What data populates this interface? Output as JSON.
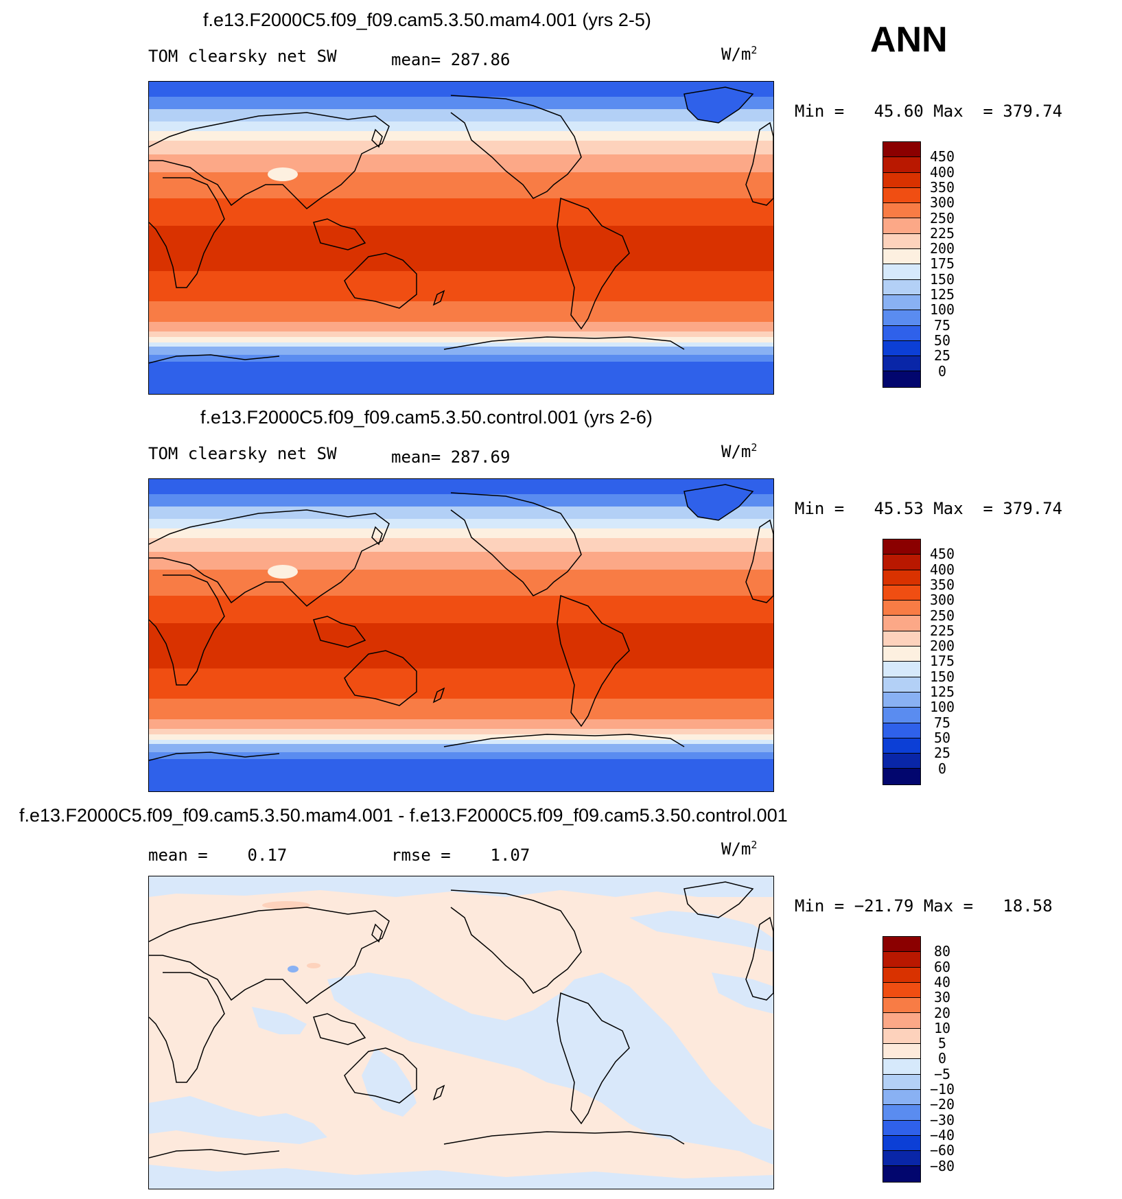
{
  "season": "ANN",
  "units_base": "W/m",
  "units_exp": "2",
  "panels": [
    {
      "title": "f.e13.F2000C5.f09_f09.cam5.3.50.mam4.001 (yrs 2-5)",
      "left_label": "TOM clearsky net SW",
      "mean_label": "mean= 287.86",
      "minmax_label": "Min =   45.60 Max  = 379.74",
      "colorbar": {
        "levels": [
          "450",
          "400",
          "350",
          "300",
          "250",
          "225",
          "200",
          "175",
          "150",
          "125",
          "100",
          "75",
          "50",
          "25",
          "0"
        ],
        "colors": [
          "#8b0000",
          "#b91800",
          "#d93200",
          "#f04e12",
          "#f87c45",
          "#fca887",
          "#fdd2bc",
          "#fdf0e0",
          "#d6e9fb",
          "#b3d0f6",
          "#89b1f3",
          "#5a8cf0",
          "#2f61ea",
          "#0c3fd6",
          "#0926a8",
          "#02066e"
        ]
      },
      "regions": [
        "Arctic low-insolation band",
        "Northern mid-latitude band",
        "Tropical maximum band",
        "Southern mid-latitude band",
        "Antarctic low-insolation band"
      ]
    },
    {
      "title": "f.e13.F2000C5.f09_f09.cam5.3.50.control.001 (yrs 2-6)",
      "left_label": "TOM clearsky net SW",
      "mean_label": "mean= 287.69",
      "minmax_label": "Min =   45.53 Max  = 379.74",
      "colorbar": {
        "levels": [
          "450",
          "400",
          "350",
          "300",
          "250",
          "225",
          "200",
          "175",
          "150",
          "125",
          "100",
          "75",
          "50",
          "25",
          "0"
        ],
        "colors": [
          "#8b0000",
          "#b91800",
          "#d93200",
          "#f04e12",
          "#f87c45",
          "#fca887",
          "#fdd2bc",
          "#fdf0e0",
          "#d6e9fb",
          "#b3d0f6",
          "#89b1f3",
          "#5a8cf0",
          "#2f61ea",
          "#0c3fd6",
          "#0926a8",
          "#02066e"
        ]
      }
    },
    {
      "title": "f.e13.F2000C5.f09_f09.cam5.3.50.mam4.001 - f.e13.F2000C5.f09_f09.cam5.3.50.control.001",
      "left_label": "mean =    0.17",
      "mean_label": "rmse =    1.07",
      "minmax_label": "Min = −21.79 Max =   18.58",
      "colorbar": {
        "levels": [
          "80",
          "60",
          "40",
          "30",
          "20",
          "10",
          "5",
          "0",
          "−5",
          "−10",
          "−20",
          "−30",
          "−40",
          "−60",
          "−80"
        ],
        "colors": [
          "#8b0000",
          "#b91800",
          "#d93200",
          "#f04e12",
          "#f87c45",
          "#fca887",
          "#fdd2bc",
          "#fdeadb",
          "#d6e9fb",
          "#b3d0f6",
          "#89b1f3",
          "#5a8cf0",
          "#2f61ea",
          "#0c3fd6",
          "#0926a8",
          "#02066e"
        ]
      }
    }
  ],
  "colors": {
    "map_land_outline": "#000000",
    "diff_positive": "#fde9dc",
    "diff_negative": "#d9e8fa"
  }
}
